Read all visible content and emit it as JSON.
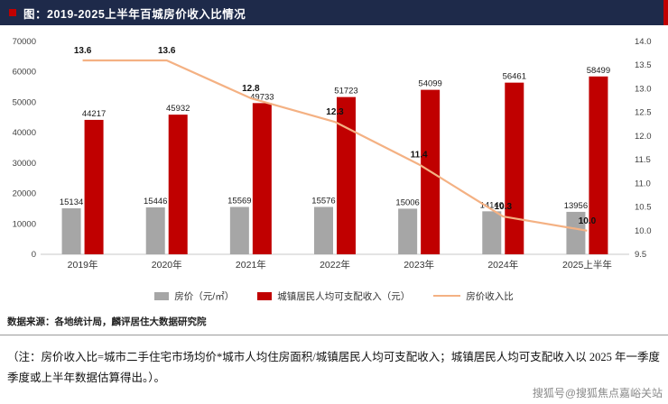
{
  "header": {
    "title": "图：2019-2025上半年百城房价收入比情况"
  },
  "chart_data": {
    "type": "bar",
    "subtype": "bar+line combo",
    "categories": [
      "2019年",
      "2020年",
      "2021年",
      "2022年",
      "2023年",
      "2024年",
      "2025上半年"
    ],
    "series": [
      {
        "name": "房价（元/㎡）",
        "type": "bar",
        "axis": "left",
        "color": "#a6a6a6",
        "values": [
          15134,
          15446,
          15569,
          15576,
          15006,
          14140,
          13956
        ]
      },
      {
        "name": "城镇居民人均可支配收入（元）",
        "type": "bar",
        "axis": "left",
        "color": "#c00000",
        "values": [
          44217,
          45932,
          49733,
          51723,
          54099,
          56461,
          58499
        ]
      },
      {
        "name": "房价收入比",
        "type": "line",
        "axis": "right",
        "color": "#f4b183",
        "values": [
          13.6,
          13.6,
          12.8,
          12.3,
          11.4,
          10.3,
          10.0
        ]
      }
    ],
    "left_axis": {
      "min": 0,
      "max": 70000,
      "step": 10000
    },
    "right_axis": {
      "min": 9.5,
      "max": 14.0,
      "step": 0.5
    },
    "grid": false,
    "legend_position": "bottom"
  },
  "footer": {
    "source": "数据来源：各地统计局，麟评居住大数据研究院",
    "note": "（注：房价收入比=城市二手住宅市场均价*城市人均住房面积/城镇居民人均可支配收入；城镇居民人均可支配收入以 2025 年一季度季度或上半年数据估算得出。）。",
    "watermark": "搜狐号@搜狐焦点嘉峪关站"
  }
}
